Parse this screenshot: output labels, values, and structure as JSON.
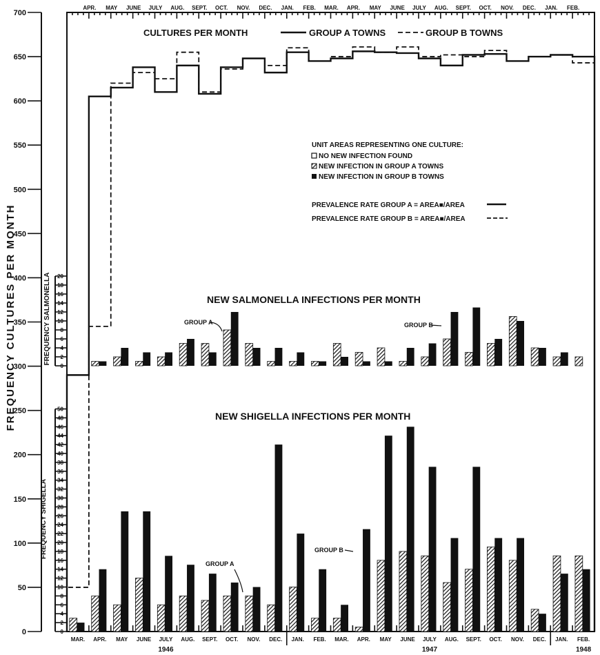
{
  "chart_data": {
    "type": "composite",
    "months": [
      "MAR.",
      "APR.",
      "MAY",
      "JUNE",
      "JULY",
      "AUG.",
      "SEPT.",
      "OCT.",
      "NOV.",
      "DEC.",
      "JAN.",
      "FEB.",
      "MAR.",
      "APR.",
      "MAY",
      "JUNE",
      "JULY",
      "AUG.",
      "SEPT.",
      "OCT.",
      "NOV.",
      "DEC.",
      "JAN.",
      "FEB."
    ],
    "years": [
      "1946",
      "1947",
      "1948"
    ],
    "left_axis": {
      "label": "FREQUENCY CULTURES PER MONTH",
      "ylim": [
        0,
        700
      ],
      "ticks": [
        "0",
        "50",
        "100",
        "150",
        "200",
        "250",
        "300",
        "350",
        "400",
        "450",
        "500",
        "550",
        "600",
        "650",
        "700"
      ]
    },
    "cultures": {
      "title": "CULTURES PER MONTH",
      "legend": [
        {
          "label": "GROUP A TOWNS",
          "style": "solid"
        },
        {
          "label": "GROUP B TOWNS",
          "style": "dashed"
        }
      ],
      "group_a": [
        290,
        605,
        615,
        638,
        610,
        640,
        608,
        638,
        648,
        632,
        655,
        645,
        648,
        656,
        655,
        654,
        648,
        640,
        652,
        653,
        645,
        650,
        652,
        650
      ],
      "group_b": [
        50,
        345,
        620,
        632,
        625,
        655,
        610,
        636,
        648,
        640,
        660,
        645,
        650,
        661,
        655,
        661,
        650,
        652,
        650,
        657,
        645,
        650,
        652,
        643
      ]
    },
    "key": {
      "title": "UNIT AREAS REPRESENTING ONE CULTURE:",
      "items": [
        "NO NEW INFECTION FOUND",
        "NEW INFECTION IN GROUP A TOWNS",
        "NEW INFECTION IN GROUP B TOWNS"
      ],
      "rates": [
        "PREVALENCE RATE GROUP A = AREA■/AREA",
        "PREVALENCE RATE GROUP B = AREA■/AREA"
      ]
    },
    "salmonella": {
      "title": "NEW SALMONELLA INFECTIONS PER MONTH",
      "axis_label": "FREQUENCY SALMONELLA",
      "ylim": [
        0,
        20
      ],
      "ticks": [
        "0",
        "2",
        "4",
        "6",
        "8",
        "10",
        "12",
        "14",
        "16",
        "18",
        "20"
      ],
      "group_a": [
        0,
        1,
        2,
        1,
        2,
        5,
        5,
        8,
        5,
        1,
        1,
        1,
        5,
        3,
        4,
        1,
        2,
        6,
        3,
        5,
        11,
        4,
        2,
        2
      ],
      "group_b": [
        0,
        1,
        4,
        3,
        3,
        6,
        3,
        12,
        4,
        4,
        3,
        1,
        2,
        1,
        1,
        4,
        5,
        12,
        13,
        6,
        10,
        4,
        3,
        0
      ],
      "annotations": [
        "GROUP A",
        "GROUP B"
      ]
    },
    "shigella": {
      "title": "NEW SHIGELLA INFECTIONS PER MONTH",
      "axis_label": "FREQUENCY SHIGELLA",
      "ylim": [
        0,
        50
      ],
      "ticks": [
        "0",
        "2",
        "4",
        "6",
        "8",
        "10",
        "12",
        "14",
        "16",
        "18",
        "20",
        "22",
        "24",
        "26",
        "28",
        "30",
        "32",
        "34",
        "36",
        "38",
        "40",
        "42",
        "44",
        "46",
        "48",
        "50"
      ],
      "group_a": [
        3,
        8,
        6,
        12,
        6,
        8,
        7,
        8,
        8,
        6,
        10,
        3,
        3,
        1,
        16,
        18,
        17,
        11,
        14,
        19,
        16,
        5,
        17,
        17
      ],
      "group_b": [
        2,
        14,
        27,
        27,
        17,
        15,
        13,
        11,
        10,
        42,
        22,
        14,
        6,
        23,
        44,
        46,
        37,
        21,
        37,
        21,
        21,
        4,
        13,
        14
      ],
      "annotations": [
        "GROUP A",
        "GROUP B"
      ]
    }
  }
}
